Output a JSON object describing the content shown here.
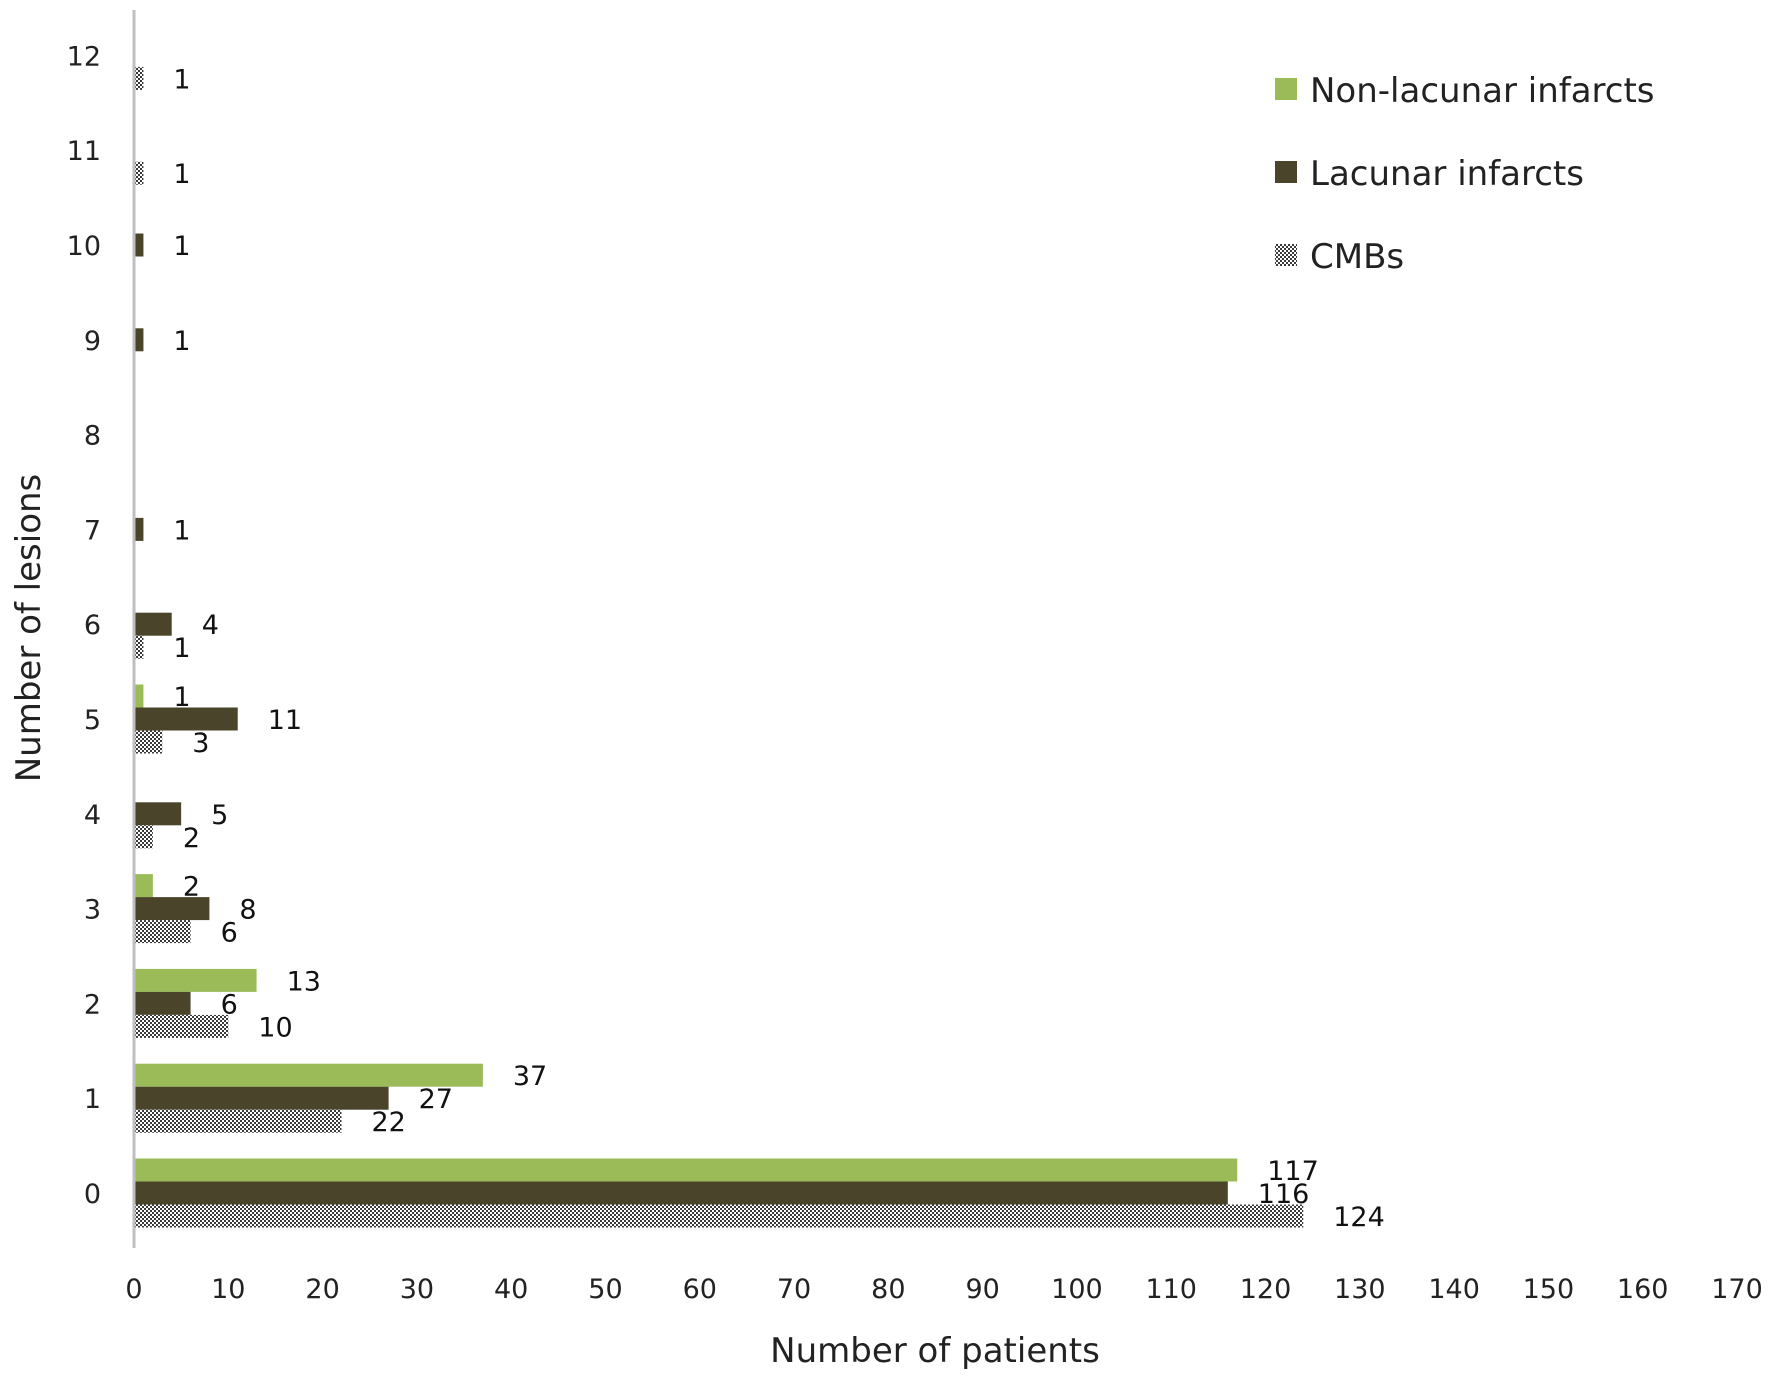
{
  "chart_data": {
    "type": "bar",
    "orientation": "horizontal",
    "categories": [
      "0",
      "1",
      "2",
      "3",
      "4",
      "5",
      "6",
      "7",
      "8",
      "9",
      "10",
      "11",
      "12"
    ],
    "series": [
      {
        "name": "Non-lacunar infarcts",
        "color": "#9bbb59",
        "pattern": "solid",
        "values": [
          117,
          37,
          13,
          2,
          0,
          1,
          0,
          0,
          0,
          0,
          0,
          0,
          0
        ]
      },
      {
        "name": "Lacunar infarcts",
        "color": "#4a452a",
        "pattern": "solid",
        "values": [
          116,
          27,
          6,
          8,
          5,
          11,
          4,
          1,
          0,
          1,
          1,
          0,
          0
        ]
      },
      {
        "name": "CMBs",
        "color": "#555555",
        "pattern": "checker",
        "values": [
          124,
          22,
          10,
          6,
          2,
          3,
          1,
          0,
          0,
          0,
          0,
          1,
          1
        ]
      }
    ],
    "xlabel": "Number of patients",
    "ylabel": "Number of lesions",
    "xlim": [
      0,
      170
    ],
    "xticks": [
      0,
      10,
      20,
      30,
      40,
      50,
      60,
      70,
      80,
      90,
      100,
      110,
      120,
      130,
      140,
      150,
      160,
      170
    ],
    "grid": false,
    "legend_position": "top-right"
  }
}
